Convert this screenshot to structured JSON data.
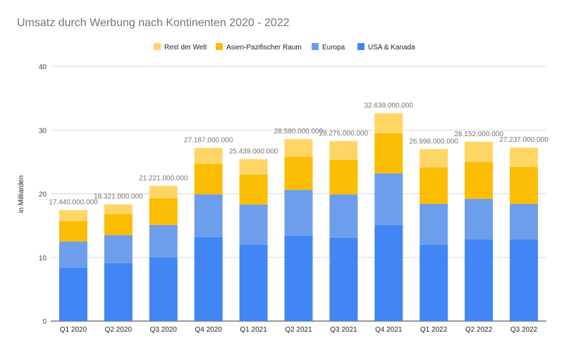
{
  "chart_data": {
    "type": "bar",
    "stacked": true,
    "title": "Umsatz durch Werbung nach Kontinenten 2020 - 2022",
    "xlabel": "",
    "ylabel": "in Milliarden",
    "ylim": [
      0,
      40
    ],
    "yticks": [
      0,
      10,
      20,
      30,
      40
    ],
    "grid": true,
    "legend_position": "top",
    "categories": [
      "Q1 2020",
      "Q2 2020",
      "Q3 2020",
      "Q4 2020",
      "Q1 2021",
      "Q2 2021",
      "Q3 2021",
      "Q4 2021",
      "Q1 2022",
      "Q2 2022",
      "Q3 2022"
    ],
    "series": [
      {
        "name": "USA & Kanada",
        "color": "#4285f4",
        "values": [
          8.4,
          9.1,
          10.0,
          13.2,
          12.0,
          13.4,
          13.1,
          15.1,
          12.0,
          12.8,
          12.8
        ]
      },
      {
        "name": "Europa",
        "color": "#6d9eeb",
        "values": [
          4.1,
          4.4,
          5.1,
          6.7,
          6.3,
          7.2,
          6.8,
          8.1,
          6.4,
          6.4,
          5.6
        ]
      },
      {
        "name": "Asien-Pazifischer Raum",
        "color": "#fbbc04",
        "values": [
          3.2,
          3.3,
          4.2,
          4.8,
          4.7,
          5.2,
          5.4,
          6.3,
          5.7,
          5.8,
          5.8
        ]
      },
      {
        "name": "Rest der Welt",
        "color": "#ffd666",
        "values": [
          1.74,
          1.52,
          1.92,
          2.49,
          2.44,
          2.78,
          2.98,
          3.14,
          2.9,
          3.15,
          3.04
        ]
      }
    ],
    "legend_order": [
      "Rest der Welt",
      "Asien-Pazifischer Raum",
      "Europa",
      "USA & Kanada"
    ],
    "totals": [
      17.44,
      18.321,
      21.221,
      27.187,
      25.439,
      28.58,
      28.276,
      32.639,
      26.998,
      28.152,
      27.237
    ],
    "total_labels": [
      "17.440.000.000",
      "18.321.000.000",
      "21.221.000.000",
      "27.187.000.000",
      "25.439.000.000",
      "28.580.000.000",
      "28.276.000.000",
      "32.639.000.000",
      "26.998.000.000",
      "28.152.000.000",
      "27.237.000.000"
    ]
  }
}
